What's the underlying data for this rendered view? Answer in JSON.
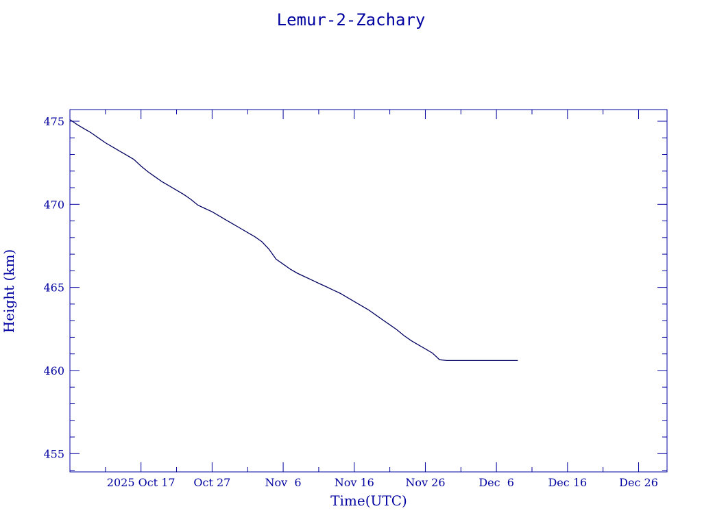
{
  "chart_data": {
    "type": "line",
    "title": "Lemur-2-Zachary",
    "xlabel": "Time(UTC)",
    "ylabel": "Height (km)",
    "x_tick_labels": [
      "2025 Oct 17",
      "Oct 27",
      "Nov  6",
      "Nov 16",
      "Nov 26",
      "Dec  6",
      "Dec 16",
      "Dec 26"
    ],
    "x_tick_dates": [
      "2025-10-17",
      "2025-10-27",
      "2025-11-06",
      "2025-11-16",
      "2025-11-26",
      "2025-12-06",
      "2025-12-16",
      "2025-12-26"
    ],
    "xlim": [
      "2025-10-07T00:00",
      "2025-12-30T00:00"
    ],
    "y_ticks": [
      455,
      460,
      465,
      470,
      475
    ],
    "ylim": [
      453.9,
      475.7
    ],
    "grid": false,
    "colors": {
      "axis": "#0000a0",
      "line": "#000060",
      "text": "#0000a0"
    },
    "series": [
      {
        "x": [
          "2025-10-07",
          "2025-10-08",
          "2025-10-09",
          "2025-10-10",
          "2025-10-11",
          "2025-10-12",
          "2025-10-13",
          "2025-10-14",
          "2025-10-15",
          "2025-10-16",
          "2025-10-17",
          "2025-10-18",
          "2025-10-19",
          "2025-10-20",
          "2025-10-21",
          "2025-10-22",
          "2025-10-23",
          "2025-10-24",
          "2025-10-25",
          "2025-10-26",
          "2025-10-27",
          "2025-10-28",
          "2025-10-29",
          "2025-10-30",
          "2025-10-31",
          "2025-11-01",
          "2025-11-02",
          "2025-11-03",
          "2025-11-04",
          "2025-11-05",
          "2025-11-06",
          "2025-11-07",
          "2025-11-08",
          "2025-11-09",
          "2025-11-10",
          "2025-11-11",
          "2025-11-12",
          "2025-11-13",
          "2025-11-14",
          "2025-11-15",
          "2025-11-16",
          "2025-11-17",
          "2025-11-18",
          "2025-11-19",
          "2025-11-20",
          "2025-11-21",
          "2025-11-22",
          "2025-11-23",
          "2025-11-24",
          "2025-11-25",
          "2025-11-26",
          "2025-11-27",
          "2025-11-28",
          "2025-11-29",
          "2025-11-30",
          "2025-12-01",
          "2025-12-02",
          "2025-12-03",
          "2025-12-04",
          "2025-12-05",
          "2025-12-06",
          "2025-12-07",
          "2025-12-08",
          "2025-12-09",
          "2025-12-10",
          "2025-12-11"
        ],
        "y": [
          475.1,
          474.8,
          474.55,
          474.3,
          474.0,
          473.7,
          473.45,
          473.2,
          472.95,
          472.7,
          472.3,
          471.95,
          471.65,
          471.35,
          471.1,
          470.85,
          470.6,
          470.3,
          469.95,
          469.75,
          469.55,
          469.3,
          469.05,
          468.8,
          468.55,
          468.3,
          468.05,
          467.75,
          467.3,
          466.7,
          466.4,
          466.1,
          465.85,
          465.65,
          465.45,
          465.25,
          465.05,
          464.85,
          464.65,
          464.4,
          464.15,
          463.9,
          463.65,
          463.35,
          463.05,
          462.75,
          462.45,
          462.1,
          461.8,
          461.55,
          461.3,
          461.05,
          460.65,
          460.6,
          460.6,
          460.6,
          460.6,
          460.6,
          460.6,
          460.6,
          460.6,
          460.6,
          460.6,
          460.6,
          460.6,
          460.6
        ]
      }
    ]
  }
}
